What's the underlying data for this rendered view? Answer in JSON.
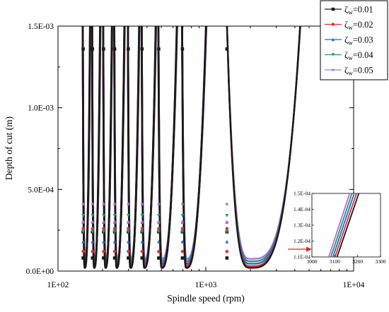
{
  "chart_data": {
    "type": "line",
    "title": "",
    "xlabel": "Spindle speed (rpm)",
    "ylabel": "Depth of cut (m)",
    "x_scale": "log",
    "xlim": [
      100,
      10000
    ],
    "ylim": [
      0,
      0.0015
    ],
    "x_ticks": [
      "1E+02",
      "1E+03",
      "1E+04"
    ],
    "y_ticks": [
      "0.0E+00",
      "5.0E-04",
      "1.0E-03",
      "1.5E-03"
    ],
    "grid": false,
    "legend_position": "top-right",
    "colors": {
      "zw_0.01": "#1a1a1a",
      "zw_0.02": "#e03030",
      "zw_0.03": "#2f63c8",
      "zw_0.04": "#1f9a6a",
      "zw_0.05": "#b36ce0"
    },
    "series": [
      {
        "label_main": "ζ",
        "label_sub": "w",
        "label_value": "=0.01",
        "marker": "square",
        "lobe_min_depth": 2e-05,
        "vertical_marker_depth": 0.00024,
        "top_marker_depth": 0.00136,
        "inset_x_at_top": 3205
      },
      {
        "label_main": "ζ",
        "label_sub": "w",
        "label_value": "=0.02",
        "marker": "circle",
        "lobe_min_depth": 3e-05,
        "vertical_marker_depth": 0.00026,
        "top_marker_depth": null,
        "inset_x_at_top": 3195
      },
      {
        "label_main": "ζ",
        "label_sub": "w",
        "label_value": "=0.03",
        "marker": "triangle-up",
        "lobe_min_depth": 4.5e-05,
        "vertical_marker_depth": 0.0003,
        "top_marker_depth": null,
        "inset_x_at_top": 3185
      },
      {
        "label_main": "ζ",
        "label_sub": "w",
        "label_value": "=0.04",
        "marker": "triangle-down",
        "lobe_min_depth": 6e-05,
        "vertical_marker_depth": 0.00034,
        "top_marker_depth": null,
        "inset_x_at_top": 3175
      },
      {
        "label_main": "ζ",
        "label_sub": "w",
        "label_value": "=0.05",
        "marker": "star",
        "lobe_min_depth": 7.5e-05,
        "vertical_marker_depth": 0.00041,
        "top_marker_depth": null,
        "inset_x_at_top": 3165
      }
    ],
    "lobes": [
      {
        "asymptote_rpm": 147,
        "min_rpm": 152,
        "max_rpm": 165
      },
      {
        "asymptote_rpm": 170,
        "min_rpm": 176,
        "max_rpm": 193
      },
      {
        "asymptote_rpm": 202,
        "min_rpm": 210,
        "max_rpm": 232
      },
      {
        "asymptote_rpm": 240,
        "min_rpm": 250,
        "max_rpm": 282
      },
      {
        "asymptote_rpm": 297,
        "min_rpm": 310,
        "max_rpm": 355
      },
      {
        "asymptote_rpm": 368,
        "min_rpm": 385,
        "max_rpm": 460
      },
      {
        "asymptote_rpm": 477,
        "min_rpm": 505,
        "max_rpm": 640
      },
      {
        "asymptote_rpm": 690,
        "min_rpm": 740,
        "max_rpm": 1010
      },
      {
        "asymptote_rpm": 1380,
        "min_rpm": 2000,
        "max_rpm": 4400
      }
    ],
    "inset": {
      "xlim": [
        3000,
        3300
      ],
      "ylim": [
        0.00011,
        0.00015
      ],
      "x_ticks": [
        "3000",
        "3100",
        "3200",
        "3300"
      ],
      "y_ticks": [
        "1.1E-04",
        "1.2E-04",
        "1.3E-04",
        "1.4E-04",
        "1.5E-04"
      ],
      "x_at_bottom": 3110,
      "arrow_color": "#e02020"
    }
  }
}
